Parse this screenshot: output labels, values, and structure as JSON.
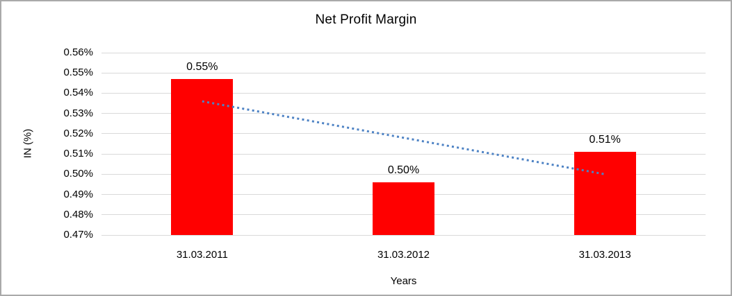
{
  "frame": {
    "border_color": "#a9a9a9",
    "background": "#ffffff"
  },
  "chart_data": {
    "type": "bar",
    "title": "Net Profit Margin",
    "xlabel": "Years",
    "ylabel": "IN (%)",
    "categories": [
      "31.03.2011",
      "31.03.2012",
      "31.03.2013"
    ],
    "values": [
      0.547,
      0.496,
      0.511
    ],
    "data_labels": [
      "0.55%",
      "0.50%",
      "0.51%"
    ],
    "y_ticks": [
      "0.56%",
      "0.55%",
      "0.54%",
      "0.53%",
      "0.52%",
      "0.51%",
      "0.50%",
      "0.49%",
      "0.48%",
      "0.47%"
    ],
    "ylim": [
      0.47,
      0.56
    ],
    "y_tick_step": 0.01,
    "grid": true,
    "legend": "none",
    "bar_color": "#ff0000",
    "gridline_color": "#d9d9d9",
    "axis_line_color": "#d9d9d9",
    "text_color": "#000000",
    "trendline": {
      "type": "linear",
      "style": "dotted",
      "color": "#4d82c4",
      "start_value": 0.536,
      "end_value": 0.5
    }
  }
}
